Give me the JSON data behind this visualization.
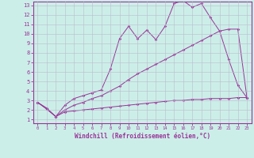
{
  "xlabel": "Windchill (Refroidissement éolien,°C)",
  "background_color": "#cceee8",
  "line_color": "#993399",
  "grid_color": "#bbbbcc",
  "xlim": [
    -0.5,
    23.5
  ],
  "ylim": [
    0.6,
    13.4
  ],
  "xticks": [
    0,
    1,
    2,
    3,
    4,
    5,
    6,
    7,
    8,
    9,
    10,
    11,
    12,
    13,
    14,
    15,
    16,
    17,
    18,
    19,
    20,
    21,
    22,
    23
  ],
  "yticks": [
    1,
    2,
    3,
    4,
    5,
    6,
    7,
    8,
    9,
    10,
    11,
    12,
    13
  ],
  "line1_x": [
    0,
    1,
    2,
    3,
    4,
    5,
    6,
    7,
    8,
    9,
    10,
    11,
    12,
    13,
    14,
    15,
    16,
    17,
    18,
    19,
    20,
    21,
    22,
    23
  ],
  "line1_y": [
    2.8,
    2.2,
    1.3,
    1.8,
    1.9,
    2.0,
    2.1,
    2.2,
    2.3,
    2.4,
    2.5,
    2.6,
    2.7,
    2.8,
    2.9,
    3.0,
    3.0,
    3.1,
    3.1,
    3.2,
    3.2,
    3.2,
    3.3,
    3.3
  ],
  "line2_x": [
    0,
    1,
    2,
    3,
    4,
    5,
    6,
    7,
    8,
    9,
    10,
    11,
    12,
    13,
    14,
    15,
    16,
    17,
    18,
    19,
    20,
    21,
    22,
    23
  ],
  "line2_y": [
    2.8,
    2.1,
    1.3,
    2.0,
    2.5,
    2.8,
    3.2,
    3.5,
    4.0,
    4.5,
    5.2,
    5.8,
    6.3,
    6.8,
    7.3,
    7.8,
    8.3,
    8.8,
    9.3,
    9.8,
    10.3,
    10.5,
    10.5,
    3.3
  ],
  "line3_x": [
    0,
    1,
    2,
    3,
    4,
    5,
    6,
    7,
    8,
    9,
    10,
    11,
    12,
    13,
    14,
    15,
    16,
    17,
    18,
    19,
    20,
    21,
    22,
    23
  ],
  "line3_y": [
    2.8,
    2.1,
    1.3,
    2.5,
    3.2,
    3.5,
    3.8,
    4.1,
    6.3,
    9.5,
    10.8,
    9.5,
    10.4,
    9.4,
    10.8,
    13.2,
    13.5,
    12.8,
    13.2,
    11.7,
    10.3,
    7.3,
    4.6,
    3.3
  ]
}
